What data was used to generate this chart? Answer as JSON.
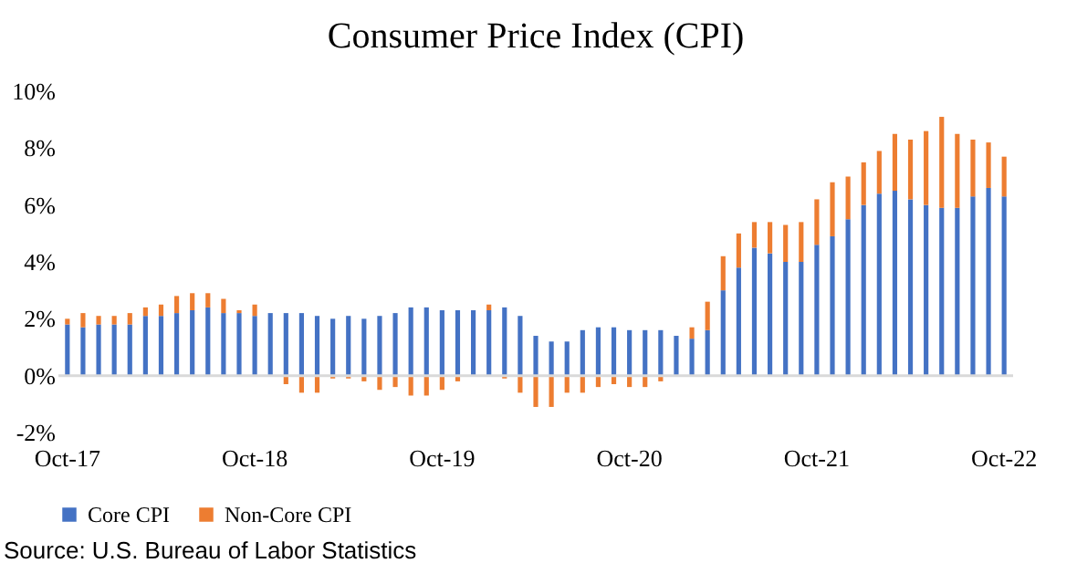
{
  "chart_data": {
    "type": "bar",
    "title": "Consumer Price Index (CPI)",
    "categories": [
      "Oct-17",
      null,
      null,
      null,
      null,
      null,
      null,
      null,
      null,
      null,
      null,
      null,
      "Oct-18",
      null,
      null,
      null,
      null,
      null,
      null,
      null,
      null,
      null,
      null,
      null,
      "Oct-19",
      null,
      null,
      null,
      null,
      null,
      null,
      null,
      null,
      null,
      null,
      null,
      "Oct-20",
      null,
      null,
      null,
      null,
      null,
      null,
      null,
      null,
      null,
      null,
      null,
      "Oct-21",
      null,
      null,
      null,
      null,
      null,
      null,
      null,
      null,
      null,
      null,
      null,
      "Oct-22"
    ],
    "series": [
      {
        "name": "Core CPI",
        "color": "#4472c4",
        "values": [
          1.8,
          1.7,
          1.8,
          1.8,
          1.8,
          2.1,
          2.1,
          2.2,
          2.3,
          2.4,
          2.2,
          2.2,
          2.1,
          2.2,
          2.2,
          2.2,
          2.1,
          2.0,
          2.1,
          2.0,
          2.1,
          2.2,
          2.4,
          2.4,
          2.3,
          2.3,
          2.3,
          2.3,
          2.4,
          2.1,
          1.4,
          1.2,
          1.2,
          1.6,
          1.7,
          1.7,
          1.6,
          1.6,
          1.6,
          1.4,
          1.3,
          1.6,
          3.0,
          3.8,
          4.5,
          4.3,
          4.0,
          4.0,
          4.6,
          4.9,
          5.5,
          6.0,
          6.4,
          6.5,
          6.2,
          6.0,
          5.9,
          5.9,
          6.3,
          6.6,
          6.3
        ]
      },
      {
        "name": "Non-Core CPI",
        "color": "#ed7d31",
        "values": [
          0.2,
          0.5,
          0.3,
          0.3,
          0.4,
          0.3,
          0.4,
          0.6,
          0.6,
          0.5,
          0.5,
          0.1,
          0.4,
          0.0,
          -0.3,
          -0.6,
          -0.6,
          -0.1,
          -0.1,
          -0.2,
          -0.5,
          -0.4,
          -0.7,
          -0.7,
          -0.5,
          -0.2,
          0.0,
          0.2,
          -0.1,
          -0.6,
          -1.1,
          -1.1,
          -0.6,
          -0.6,
          -0.4,
          -0.3,
          -0.4,
          -0.4,
          -0.2,
          0.0,
          0.4,
          1.0,
          1.2,
          1.2,
          0.9,
          1.1,
          1.3,
          1.4,
          1.6,
          1.9,
          1.5,
          1.5,
          1.5,
          2.0,
          2.1,
          2.6,
          3.2,
          2.6,
          2.0,
          1.6,
          1.4
        ]
      }
    ],
    "stacked": true,
    "ylim": [
      -2,
      10
    ],
    "yticks": [
      {
        "value": -2,
        "label": "-2%"
      },
      {
        "value": 0,
        "label": "0%"
      },
      {
        "value": 2,
        "label": "2%"
      },
      {
        "value": 4,
        "label": "4%"
      },
      {
        "value": 6,
        "label": "6%"
      },
      {
        "value": 8,
        "label": "8%"
      },
      {
        "value": 10,
        "label": "10%"
      }
    ],
    "ref_lines": [
      {
        "axis": "y",
        "value": 0,
        "color": "#d9d9d9"
      }
    ],
    "grid": false,
    "legend": "bottom",
    "annotations": [
      "Source: U.S. Bureau of Labor Statistics"
    ]
  }
}
